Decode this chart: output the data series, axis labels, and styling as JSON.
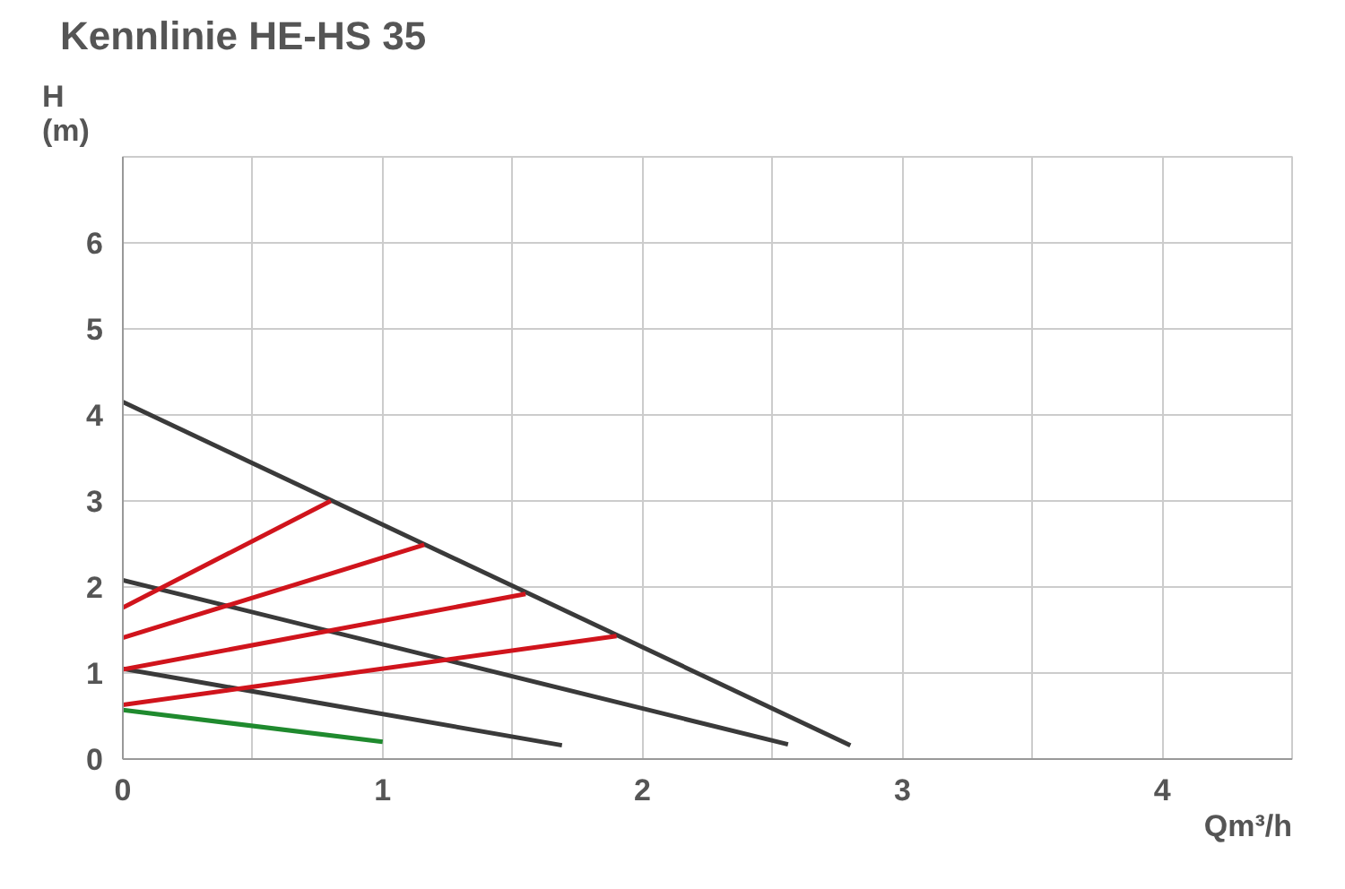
{
  "chart_data": {
    "type": "line",
    "title": "Kennlinie HE-HS 35",
    "xlabel": "Qm³/h",
    "ylabel": "H\n(m)",
    "xlim": [
      0,
      4.5
    ],
    "ylim": [
      0,
      7
    ],
    "xticks": [
      0,
      1,
      2,
      3,
      4
    ],
    "yticks": [
      0,
      1,
      2,
      3,
      4,
      5,
      6
    ],
    "grid": true,
    "marker": "none",
    "line_style": "solid",
    "series": [
      {
        "color": "#3a3a3a",
        "x": [
          0,
          2.8
        ],
        "values": [
          4.15,
          0.16
        ]
      },
      {
        "color": "#3a3a3a",
        "x": [
          0,
          2.56
        ],
        "values": [
          2.08,
          0.17
        ]
      },
      {
        "color": "#3a3a3a",
        "x": [
          0,
          1.69
        ],
        "values": [
          1.05,
          0.16
        ]
      },
      {
        "color": "#1f8a2e",
        "x": [
          0,
          1
        ],
        "values": [
          0.57,
          0.2
        ]
      },
      {
        "color": "#d0141c",
        "x": [
          0,
          0.8
        ],
        "values": [
          1.76,
          3.0
        ]
      },
      {
        "color": "#d0141c",
        "x": [
          0,
          1.16
        ],
        "values": [
          1.41,
          2.49
        ]
      },
      {
        "color": "#d0141c",
        "x": [
          0,
          1.55
        ],
        "values": [
          1.04,
          1.92
        ]
      },
      {
        "color": "#d0141c",
        "x": [
          0,
          1.9
        ],
        "values": [
          0.63,
          1.43
        ]
      }
    ]
  }
}
